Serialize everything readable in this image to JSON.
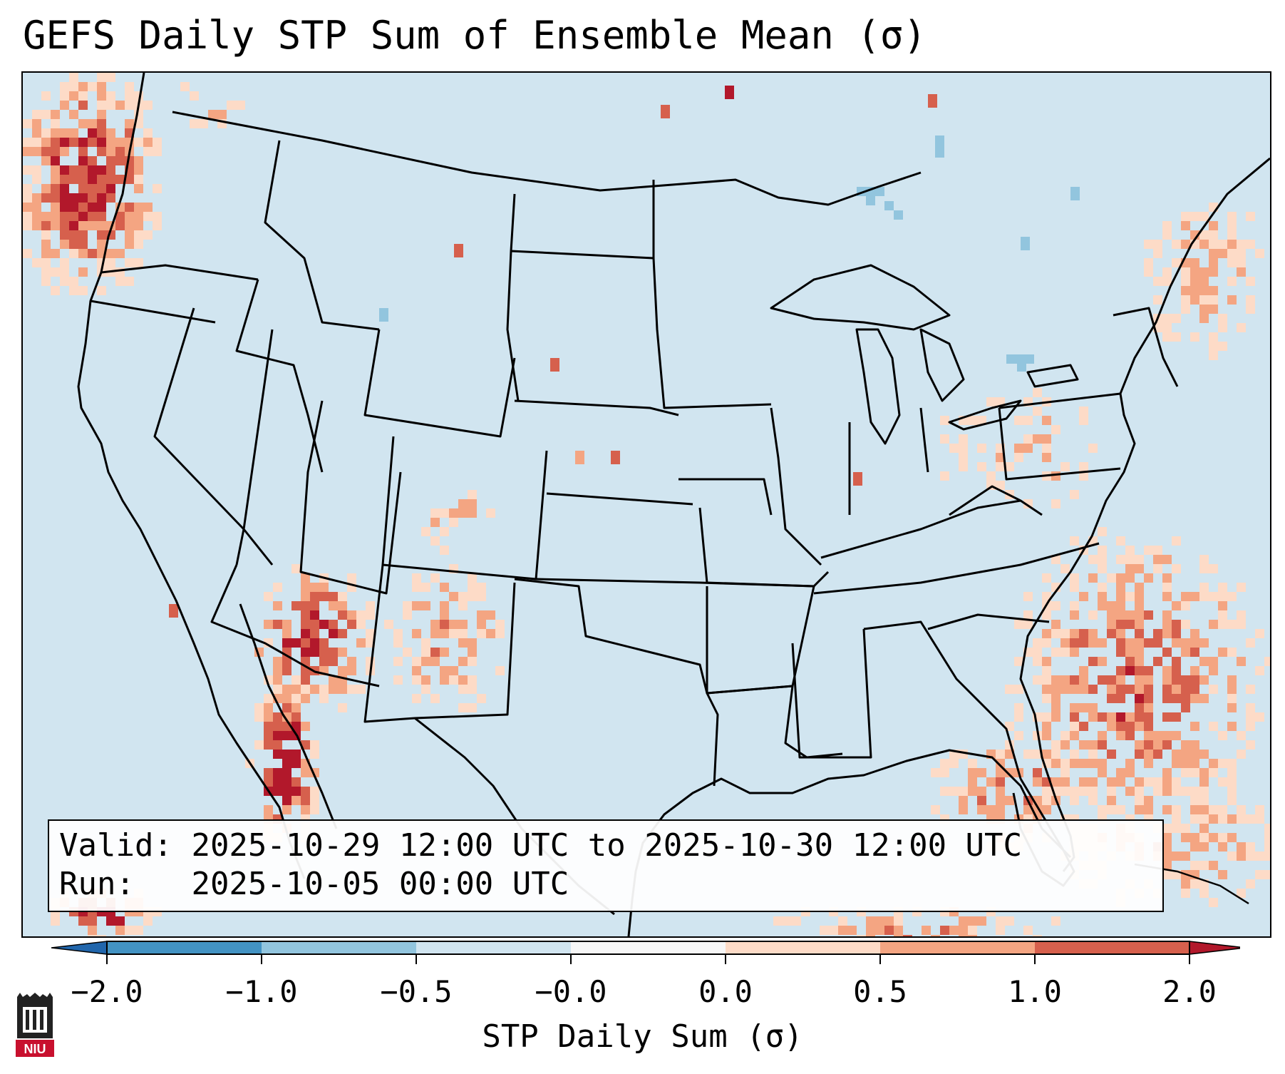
{
  "title": "GEFS Daily STP Sum of Ensemble Mean (σ)",
  "info": {
    "valid_label": "Valid:",
    "valid_value": "2025-10-29 12:00 UTC to 2025-10-30 12:00 UTC",
    "run_label": "Run:",
    "run_value": "2025-10-05 00:00 UTC"
  },
  "colorbar": {
    "label": "STP Daily Sum (σ)",
    "ticks": [
      "−2.0",
      "−1.0",
      "−0.5",
      "−0.0",
      "0.0",
      "0.5",
      "1.0",
      "2.0"
    ],
    "bins": [
      {
        "color": "#2166ac",
        "extend": "min"
      },
      {
        "color": "#4393c3"
      },
      {
        "color": "#92c5de"
      },
      {
        "color": "#d1e5f0"
      },
      {
        "color": "#f7f7f7"
      },
      {
        "color": "#fddbc7"
      },
      {
        "color": "#f4a582"
      },
      {
        "color": "#d6604d"
      },
      {
        "color": "#b2182b",
        "extend": "max"
      }
    ]
  },
  "map": {
    "background_color": "#d1e5f0",
    "field_colors": {
      "light_red": "#fddbc7",
      "medium_red": "#f4a582",
      "red": "#d6604d",
      "dark_red": "#b2182b",
      "light_blue": "#92c5de"
    }
  },
  "logo": {
    "text": "NIU",
    "color": "#c8102e"
  }
}
